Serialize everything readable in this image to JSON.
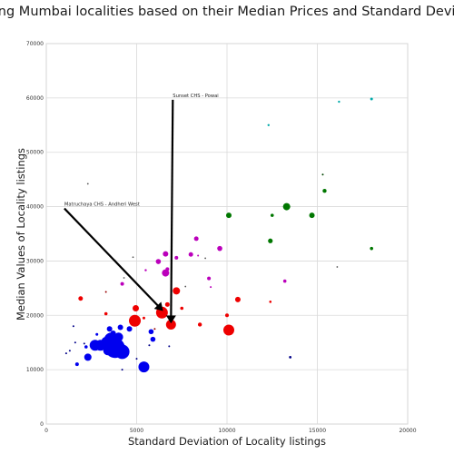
{
  "chart_data": {
    "type": "scatter",
    "title": "Clustering Mumbai localities based on their Median Prices and Standard Deviations",
    "xlabel": "Standard Deviation of Locality listings",
    "ylabel": "Median Values of Locality listings",
    "xlim": [
      0,
      20000
    ],
    "ylim": [
      0,
      70000
    ],
    "x_ticks": [
      "0",
      "5000",
      "10000",
      "15000",
      "20000"
    ],
    "y_ticks": [
      "0",
      "10000",
      "20000",
      "30000",
      "40000",
      "50000",
      "60000",
      "70000"
    ],
    "grid": true,
    "legend": "none",
    "colors": {
      "blue": "#0000ee",
      "red": "#ee0000",
      "magenta": "#bb00bb",
      "green": "#007700",
      "teal": "#00aaaa",
      "navy": "#000088",
      "darkred": "#990000",
      "darkgreen": "#004400",
      "gray": "#555555"
    },
    "annotations": [
      {
        "text": "Sunset CHS - Powai",
        "text_x": 7000,
        "text_y": 60000,
        "point_x": 6900,
        "point_y": 18300
      },
      {
        "text": "Matruchaya CHS - Andheri West",
        "text_x": 1000,
        "text_y": 40000,
        "point_x": 6400,
        "point_y": 20500
      }
    ],
    "points": [
      {
        "x": 3800,
        "y": 14000,
        "s": 11,
        "c": "blue"
      },
      {
        "x": 4200,
        "y": 13300,
        "s": 8,
        "c": "blue"
      },
      {
        "x": 3600,
        "y": 15500,
        "s": 8,
        "c": "blue"
      },
      {
        "x": 3000,
        "y": 14500,
        "s": 6,
        "c": "blue"
      },
      {
        "x": 2700,
        "y": 14500,
        "s": 6,
        "c": "blue"
      },
      {
        "x": 3400,
        "y": 13500,
        "s": 5,
        "c": "blue"
      },
      {
        "x": 4000,
        "y": 16000,
        "s": 5,
        "c": "blue"
      },
      {
        "x": 3300,
        "y": 15200,
        "s": 5,
        "c": "blue"
      },
      {
        "x": 3500,
        "y": 17500,
        "s": 3,
        "c": "blue"
      },
      {
        "x": 4100,
        "y": 17800,
        "s": 3,
        "c": "blue"
      },
      {
        "x": 3700,
        "y": 16700,
        "s": 3,
        "c": "blue"
      },
      {
        "x": 2300,
        "y": 12300,
        "s": 4,
        "c": "blue"
      },
      {
        "x": 5400,
        "y": 10500,
        "s": 6,
        "c": "blue"
      },
      {
        "x": 4600,
        "y": 17500,
        "s": 3,
        "c": "blue"
      },
      {
        "x": 5800,
        "y": 17000,
        "s": 2.8,
        "c": "blue"
      },
      {
        "x": 5900,
        "y": 15600,
        "s": 2.8,
        "c": "blue"
      },
      {
        "x": 2200,
        "y": 14200,
        "s": 1.8,
        "c": "blue"
      },
      {
        "x": 1700,
        "y": 11000,
        "s": 2,
        "c": "blue"
      },
      {
        "x": 4200,
        "y": 13000,
        "s": 2,
        "c": "blue"
      },
      {
        "x": 2800,
        "y": 16500,
        "s": 1.5,
        "c": "blue"
      },
      {
        "x": 1500,
        "y": 18000,
        "s": 1,
        "c": "navy"
      },
      {
        "x": 2100,
        "y": 14800,
        "s": 1,
        "c": "navy"
      },
      {
        "x": 1600,
        "y": 15000,
        "s": 1,
        "c": "navy"
      },
      {
        "x": 1100,
        "y": 13000,
        "s": 1,
        "c": "navy"
      },
      {
        "x": 1300,
        "y": 13500,
        "s": 1,
        "c": "navy"
      },
      {
        "x": 4200,
        "y": 10000,
        "s": 1,
        "c": "navy"
      },
      {
        "x": 5000,
        "y": 12000,
        "s": 1,
        "c": "navy"
      },
      {
        "x": 5700,
        "y": 14500,
        "s": 1,
        "c": "navy"
      },
      {
        "x": 6800,
        "y": 14300,
        "s": 1,
        "c": "navy"
      },
      {
        "x": 13500,
        "y": 12300,
        "s": 1.4,
        "c": "navy"
      },
      {
        "x": 4900,
        "y": 19000,
        "s": 6.5,
        "c": "red"
      },
      {
        "x": 6400,
        "y": 20500,
        "s": 6.5,
        "c": "red"
      },
      {
        "x": 6900,
        "y": 18300,
        "s": 5.5,
        "c": "red"
      },
      {
        "x": 10100,
        "y": 17300,
        "s": 6,
        "c": "red"
      },
      {
        "x": 7200,
        "y": 24500,
        "s": 4,
        "c": "red"
      },
      {
        "x": 4950,
        "y": 21300,
        "s": 3.5,
        "c": "red"
      },
      {
        "x": 10600,
        "y": 22900,
        "s": 3,
        "c": "red"
      },
      {
        "x": 1900,
        "y": 23100,
        "s": 2.5,
        "c": "red"
      },
      {
        "x": 6700,
        "y": 22000,
        "s": 2.5,
        "c": "red"
      },
      {
        "x": 8500,
        "y": 18300,
        "s": 2.2,
        "c": "red"
      },
      {
        "x": 10000,
        "y": 20000,
        "s": 2,
        "c": "red"
      },
      {
        "x": 3300,
        "y": 20300,
        "s": 1.8,
        "c": "red"
      },
      {
        "x": 5400,
        "y": 19500,
        "s": 1.5,
        "c": "red"
      },
      {
        "x": 7500,
        "y": 21300,
        "s": 1.8,
        "c": "red"
      },
      {
        "x": 12400,
        "y": 22500,
        "s": 1.3,
        "c": "red"
      },
      {
        "x": 3300,
        "y": 24300,
        "s": 1,
        "c": "darkred"
      },
      {
        "x": 6000,
        "y": 17500,
        "s": 1,
        "c": "darkred"
      },
      {
        "x": 6600,
        "y": 27800,
        "s": 4,
        "c": "magenta"
      },
      {
        "x": 6600,
        "y": 31300,
        "s": 3,
        "c": "magenta"
      },
      {
        "x": 6200,
        "y": 29900,
        "s": 2.8,
        "c": "magenta"
      },
      {
        "x": 8300,
        "y": 34100,
        "s": 2.5,
        "c": "magenta"
      },
      {
        "x": 9600,
        "y": 32300,
        "s": 2.8,
        "c": "magenta"
      },
      {
        "x": 8000,
        "y": 31200,
        "s": 2.5,
        "c": "magenta"
      },
      {
        "x": 7200,
        "y": 30600,
        "s": 2,
        "c": "magenta"
      },
      {
        "x": 9000,
        "y": 26800,
        "s": 2,
        "c": "magenta"
      },
      {
        "x": 4200,
        "y": 25800,
        "s": 2,
        "c": "magenta"
      },
      {
        "x": 13200,
        "y": 26300,
        "s": 1.8,
        "c": "magenta"
      },
      {
        "x": 5500,
        "y": 28300,
        "s": 1.2,
        "c": "magenta"
      },
      {
        "x": 6700,
        "y": 28500,
        "s": 2,
        "c": "magenta"
      },
      {
        "x": 8400,
        "y": 31000,
        "s": 1,
        "c": "magenta"
      },
      {
        "x": 9100,
        "y": 25200,
        "s": 1,
        "c": "magenta"
      },
      {
        "x": 13300,
        "y": 40000,
        "s": 4,
        "c": "green"
      },
      {
        "x": 10100,
        "y": 38400,
        "s": 3,
        "c": "green"
      },
      {
        "x": 14700,
        "y": 38400,
        "s": 3,
        "c": "green"
      },
      {
        "x": 12400,
        "y": 33700,
        "s": 2.6,
        "c": "green"
      },
      {
        "x": 15400,
        "y": 42900,
        "s": 2.2,
        "c": "green"
      },
      {
        "x": 12500,
        "y": 38400,
        "s": 1.8,
        "c": "green"
      },
      {
        "x": 18000,
        "y": 32300,
        "s": 1.8,
        "c": "green"
      },
      {
        "x": 15300,
        "y": 45900,
        "s": 1,
        "c": "darkgreen"
      },
      {
        "x": 18000,
        "y": 59800,
        "s": 1.5,
        "c": "teal"
      },
      {
        "x": 16200,
        "y": 59300,
        "s": 1.2,
        "c": "teal"
      },
      {
        "x": 12300,
        "y": 55000,
        "s": 1.2,
        "c": "teal"
      },
      {
        "x": 2300,
        "y": 44200,
        "s": 0.9,
        "c": "gray"
      },
      {
        "x": 3800,
        "y": 30100,
        "s": 0.9,
        "c": "gray"
      },
      {
        "x": 4800,
        "y": 30700,
        "s": 0.9,
        "c": "gray"
      },
      {
        "x": 16100,
        "y": 28900,
        "s": 0.9,
        "c": "gray"
      },
      {
        "x": 7700,
        "y": 25300,
        "s": 0.9,
        "c": "gray"
      },
      {
        "x": 4300,
        "y": 26900,
        "s": 0.9,
        "c": "gray"
      },
      {
        "x": 8800,
        "y": 30500,
        "s": 0.9,
        "c": "gray"
      }
    ]
  }
}
